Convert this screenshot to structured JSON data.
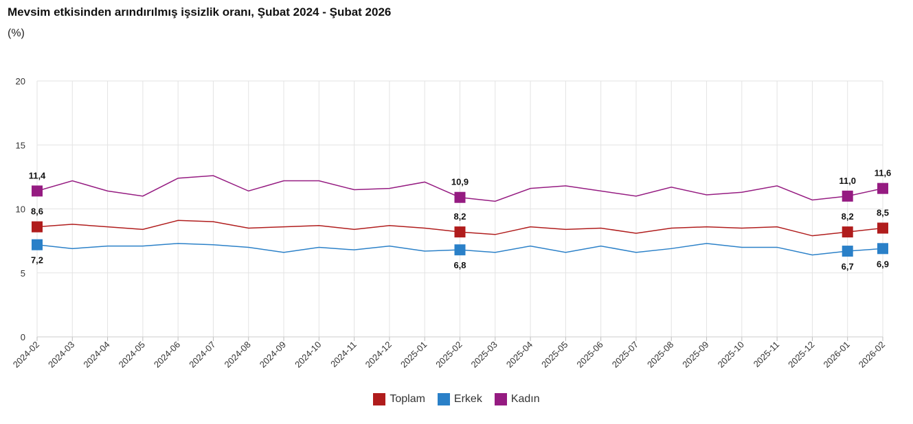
{
  "title": "Mevsim etkisinden arındırılmış işsizlik oranı, Şubat 2024 - Şubat 2026",
  "subtitle": "(%)",
  "chart_data": {
    "type": "line",
    "title": "Mevsim etkisinden arındırılmış işsizlik oranı, Şubat 2024 - Şubat 2026",
    "ylabel": "(%)",
    "ylim": [
      0,
      20
    ],
    "yticks": [
      0,
      5,
      10,
      15,
      20
    ],
    "grid": true,
    "legend": "bottom",
    "categories": [
      "2024-02",
      "2024-03",
      "2024-04",
      "2024-05",
      "2024-06",
      "2024-07",
      "2024-08",
      "2024-09",
      "2024-10",
      "2024-11",
      "2024-12",
      "2025-01",
      "2025-02",
      "2025-03",
      "2025-04",
      "2025-05",
      "2025-06",
      "2025-07",
      "2025-08",
      "2025-09",
      "2025-10",
      "2025-11",
      "2025-12",
      "2026-01",
      "2026-02"
    ],
    "labeled_indices": [
      0,
      12,
      23,
      24
    ],
    "series": [
      {
        "name": "Toplam",
        "color": "#b01c1c",
        "label_pos": "above",
        "values": [
          8.6,
          8.8,
          8.6,
          8.4,
          9.1,
          9.0,
          8.5,
          8.6,
          8.7,
          8.4,
          8.7,
          8.5,
          8.2,
          8.0,
          8.6,
          8.4,
          8.5,
          8.1,
          8.5,
          8.6,
          8.5,
          8.6,
          7.9,
          8.2,
          8.5
        ]
      },
      {
        "name": "Erkek",
        "color": "#2a80c8",
        "label_pos": "below",
        "values": [
          7.2,
          6.9,
          7.1,
          7.1,
          7.3,
          7.2,
          7.0,
          6.6,
          7.0,
          6.8,
          7.1,
          6.7,
          6.8,
          6.6,
          7.1,
          6.6,
          7.1,
          6.6,
          6.9,
          7.3,
          7.0,
          7.0,
          6.4,
          6.7,
          6.9
        ]
      },
      {
        "name": "Kadın",
        "color": "#951b81",
        "label_pos": "above",
        "values": [
          11.4,
          12.2,
          11.4,
          11.0,
          12.4,
          12.6,
          11.4,
          12.2,
          12.2,
          11.5,
          11.6,
          12.1,
          10.9,
          10.6,
          11.6,
          11.8,
          11.4,
          11.0,
          11.7,
          11.1,
          11.3,
          11.8,
          10.7,
          11.0,
          11.6
        ]
      }
    ]
  }
}
